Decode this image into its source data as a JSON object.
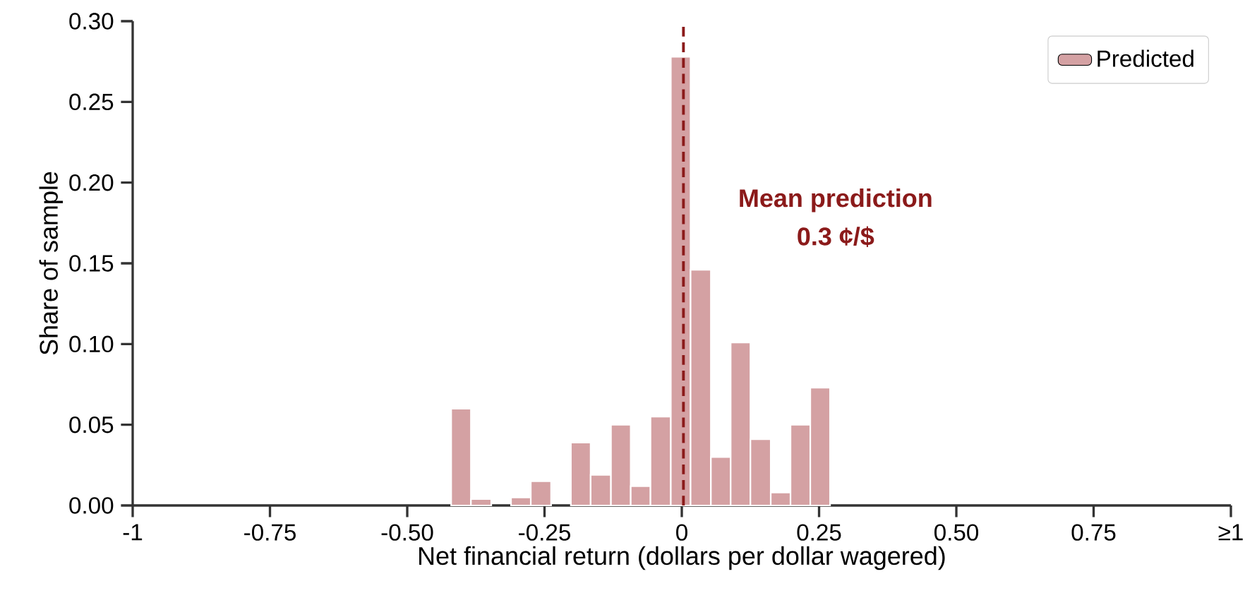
{
  "chart_data": {
    "type": "histogram",
    "xlabel": "Net financial return (dollars per dollar wagered)",
    "ylabel": "Share of sample",
    "bins": [
      -0.42,
      -0.384,
      -0.347,
      -0.311,
      -0.275,
      -0.238,
      -0.202,
      -0.166,
      -0.129,
      -0.093,
      -0.057,
      -0.02,
      0.016,
      0.053,
      0.089,
      0.125,
      0.162,
      0.198,
      0.234,
      0.27
    ],
    "series": [
      {
        "name": "Predicted",
        "color": "#d4a1a3",
        "values": [
          0.06,
          0.004,
          0,
          0.005,
          0.015,
          0,
          0.039,
          0.019,
          0.05,
          0.012,
          0.055,
          0.278,
          0.146,
          0.03,
          0.101,
          0.041,
          0.008,
          0.05,
          0.073
        ]
      }
    ],
    "xlim": [
      -1,
      1
    ],
    "ylim": [
      0,
      0.3
    ],
    "xticks": [
      -1,
      -0.75,
      {
        "value": -0.5,
        "label": "-0.50"
      },
      -0.25,
      0,
      0.25,
      {
        "value": 0.5,
        "label": "0.50"
      },
      0.75,
      {
        "value": 1,
        "label": "≥1"
      }
    ],
    "yticks": [
      {
        "value": 0,
        "label": "0.00"
      },
      {
        "value": 0.05,
        "label": "0.05"
      },
      {
        "value": 0.1,
        "label": "0.10"
      },
      {
        "value": 0.15,
        "label": "0.15"
      },
      {
        "value": 0.2,
        "label": "0.20"
      },
      {
        "value": 0.25,
        "label": "0.25"
      },
      {
        "value": 0.3,
        "label": "0.30"
      }
    ],
    "ref_lines": [
      {
        "axis": "x",
        "value": 0.003,
        "color": "#8b1a1a",
        "line_style": "dashed"
      }
    ],
    "annotations": [
      "Mean prediction",
      "0.3 ¢/$"
    ],
    "legend": "top right",
    "grid": false
  }
}
